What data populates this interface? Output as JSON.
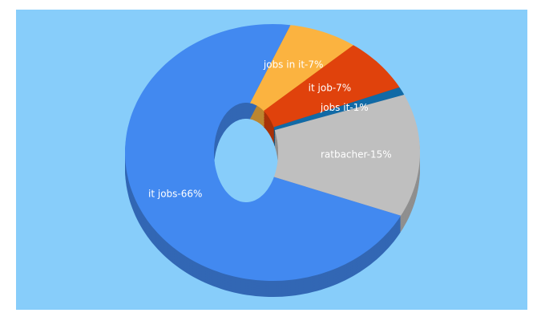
{
  "chart_data": {
    "type": "donut3d",
    "values": [
      7,
      7,
      1,
      15,
      66
    ],
    "value_labels": [
      "jobs in it-7%",
      "it job-7%",
      "jobs it-1%",
      "ratbacher-15%",
      "it jobs-66%"
    ],
    "colors": [
      "#fbb340",
      "#e0420c",
      "#116aa6",
      "#bfbfbf",
      "#4289f0"
    ]
  }
}
